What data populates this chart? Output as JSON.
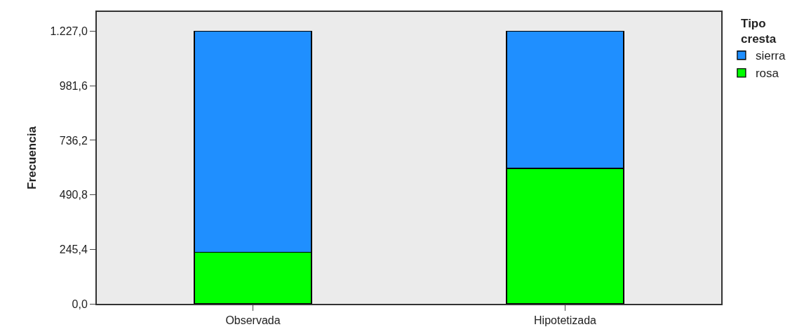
{
  "chart_data": {
    "type": "bar",
    "stacked": true,
    "ylabel": "Frecuencia",
    "legend_title": "Tipo cresta",
    "categories": [
      "Observada",
      "Hipotetizada"
    ],
    "series": [
      {
        "name": "rosa",
        "color": "#00ff00",
        "values": [
          232,
          610
        ]
      },
      {
        "name": "sierra",
        "color": "#1f8fff",
        "values": [
          995,
          617
        ]
      }
    ],
    "ylim": [
      0,
      1314
    ],
    "yticks": [
      {
        "value": 0,
        "label": "0,0"
      },
      {
        "value": 245.4,
        "label": "245,4"
      },
      {
        "value": 490.8,
        "label": "490,8"
      },
      {
        "value": 736.2,
        "label": "736,2"
      },
      {
        "value": 981.6,
        "label": "981,6"
      },
      {
        "value": 1227,
        "label": "1.227,0"
      }
    ],
    "grid": false,
    "legend": "right"
  }
}
